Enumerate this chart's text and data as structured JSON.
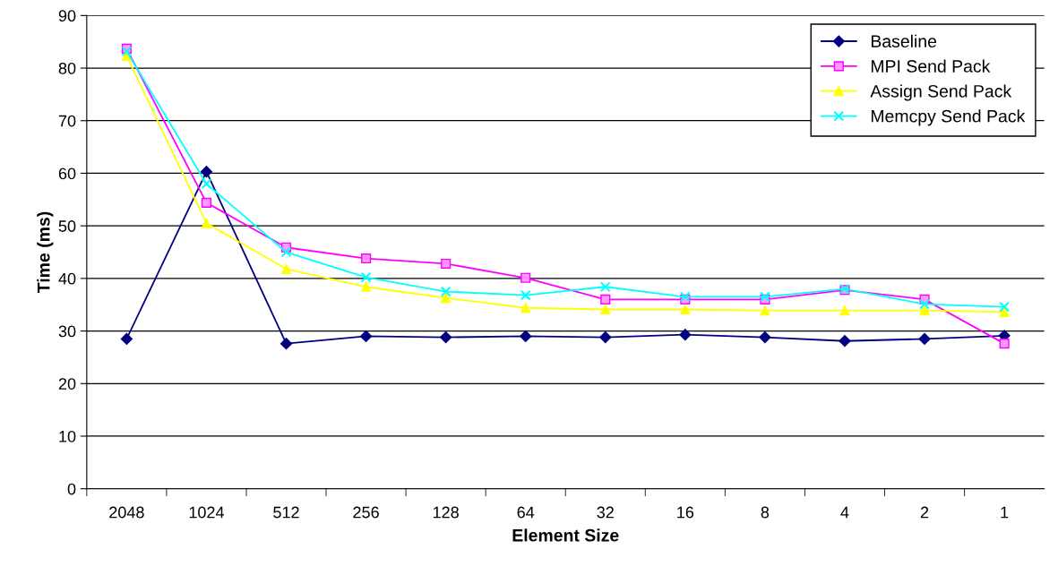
{
  "chart_data": {
    "type": "line",
    "xlabel": "Element Size",
    "ylabel": "Time (ms)",
    "categories": [
      "2048",
      "1024",
      "512",
      "256",
      "128",
      "64",
      "32",
      "16",
      "8",
      "4",
      "2",
      "1"
    ],
    "series": [
      {
        "name": "Baseline",
        "color": "#000080",
        "marker": "diamond",
        "values": [
          28.5,
          60.3,
          27.6,
          29.0,
          28.8,
          29.0,
          28.8,
          29.3,
          28.8,
          28.1,
          28.5,
          29.1
        ]
      },
      {
        "name": "MPI Send Pack",
        "color": "#ff00ff",
        "marker": "square",
        "values": [
          83.7,
          54.4,
          45.9,
          43.8,
          42.8,
          40.1,
          36.0,
          36.0,
          36.0,
          37.8,
          36.0,
          27.6
        ]
      },
      {
        "name": "Assign Send Pack",
        "color": "#ffff00",
        "marker": "triangle",
        "values": [
          82.3,
          50.5,
          41.8,
          38.4,
          36.3,
          34.4,
          34.1,
          34.1,
          33.9,
          33.9,
          33.9,
          33.6
        ]
      },
      {
        "name": "Memcpy Send Pack",
        "color": "#00ffff",
        "marker": "cross",
        "values": [
          83.2,
          58.0,
          45.0,
          40.2,
          37.5,
          36.8,
          38.4,
          36.5,
          36.5,
          38.0,
          35.1,
          34.6
        ]
      }
    ],
    "ylim": [
      0,
      90
    ],
    "yticks": [
      0,
      10,
      20,
      30,
      40,
      50,
      60,
      70,
      80,
      90
    ],
    "grid": "y",
    "legend": "top right"
  }
}
